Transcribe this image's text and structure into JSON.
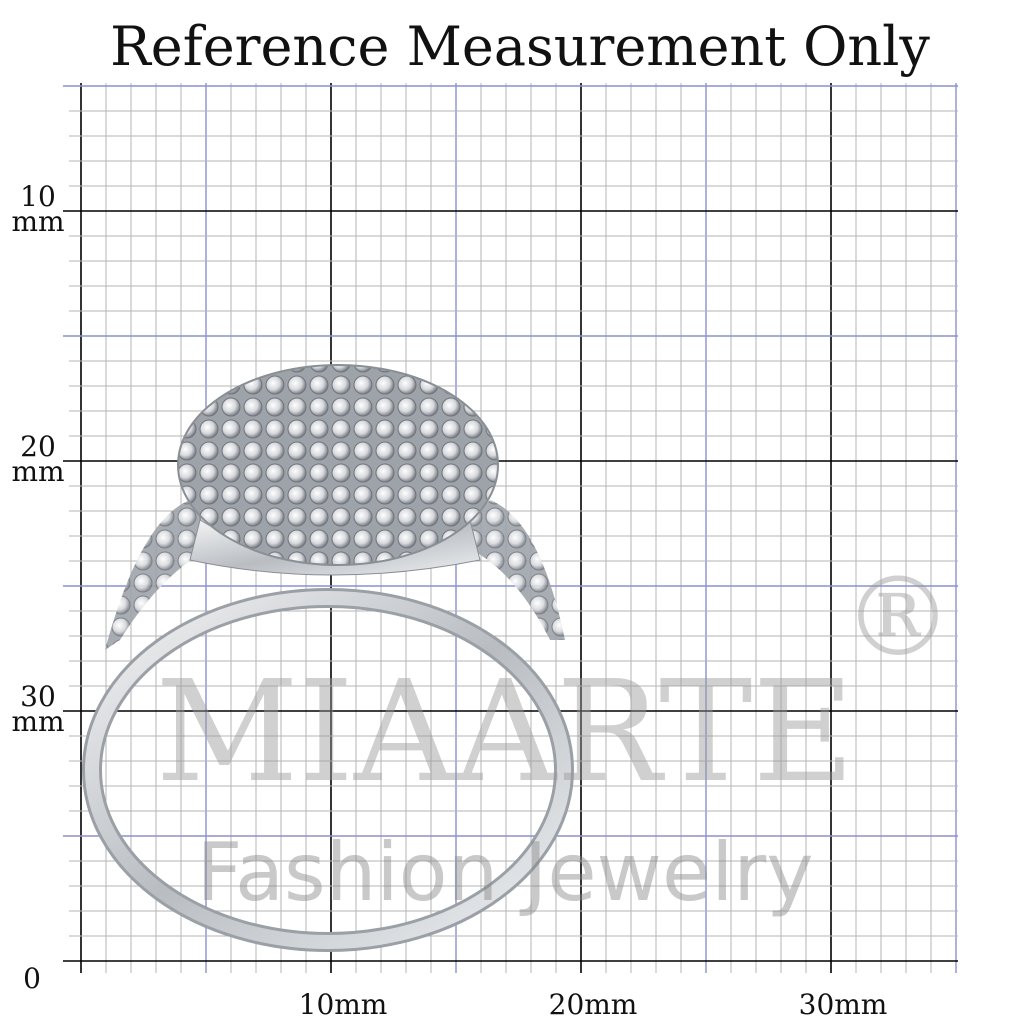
{
  "title": "Reference Measurement Only",
  "y_labels": [
    {
      "number": "30",
      "unit": "mm"
    },
    {
      "number": "20",
      "unit": "mm"
    },
    {
      "number": "10",
      "unit": "mm"
    }
  ],
  "origin_label": "0",
  "x_labels": [
    "10mm",
    "20mm",
    "30mm"
  ],
  "watermark": {
    "brand": "MIAARTE",
    "mark": "®",
    "tagline": "Fashion Jewelry"
  }
}
